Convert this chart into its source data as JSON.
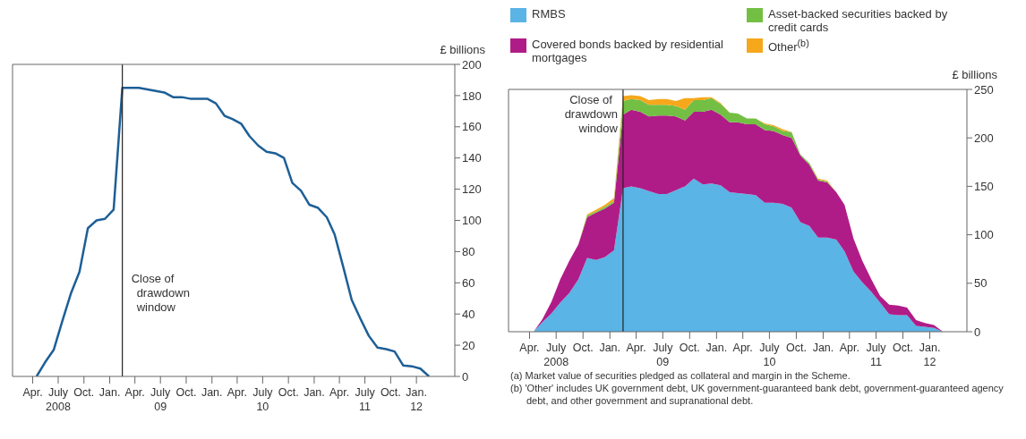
{
  "chart_data": [
    {
      "type": "line",
      "ylabel": "£ billions",
      "x": [
        "2008-04-15",
        "2008-05-15",
        "2008-06-15",
        "2008-07-15",
        "2008-08-15",
        "2008-09-15",
        "2008-10-15",
        "2008-11-15",
        "2008-12-15",
        "2009-01-15",
        "2009-02-15",
        "2009-04-15",
        "2009-06-15",
        "2009-07-15",
        "2009-08-15",
        "2009-09-15",
        "2009-10-15",
        "2009-12-15",
        "2010-01-15",
        "2010-02-15",
        "2010-03-15",
        "2010-04-15",
        "2010-05-15",
        "2010-06-15",
        "2010-07-15",
        "2010-08-15",
        "2010-09-15",
        "2010-10-15",
        "2010-11-15",
        "2010-12-15",
        "2011-01-15",
        "2011-02-15",
        "2011-03-15",
        "2011-04-15",
        "2011-05-15",
        "2011-06-15",
        "2011-07-15",
        "2011-08-15",
        "2011-09-15",
        "2011-10-15",
        "2011-11-15",
        "2011-12-15",
        "2012-01-15",
        "2012-02-15"
      ],
      "series": [
        {
          "color": "#1d5f96",
          "values": [
            0,
            9,
            17,
            35,
            53,
            67,
            95,
            100,
            101,
            107,
            185,
            185,
            183,
            182,
            179,
            179,
            178,
            178,
            175,
            167,
            165,
            162,
            154,
            148,
            144,
            143,
            140,
            124,
            119,
            110,
            108,
            102,
            91,
            70,
            49,
            37,
            26,
            18.5,
            17.5,
            16,
            7,
            6.5,
            5,
            0
          ]
        }
      ],
      "xlim": [
        "2008-01-20",
        "2012-05-17"
      ],
      "xticks": [
        {
          "value": "2008-04-01",
          "label": "Apr."
        },
        {
          "value": "2008-07-01",
          "label": "July\n2008"
        },
        {
          "value": "2008-10-01",
          "label": "Oct."
        },
        {
          "value": "2009-01-01",
          "label": "Jan."
        },
        {
          "value": "2009-04-01",
          "label": "Apr."
        },
        {
          "value": "2009-07-01",
          "label": "July\n09"
        },
        {
          "value": "2009-10-01",
          "label": "Oct."
        },
        {
          "value": "2010-01-01",
          "label": "Jan."
        },
        {
          "value": "2010-04-01",
          "label": "Apr."
        },
        {
          "value": "2010-07-01",
          "label": "July\n10"
        },
        {
          "value": "2010-10-01",
          "label": "Oct."
        },
        {
          "value": "2011-01-01",
          "label": "Jan."
        },
        {
          "value": "2011-04-01",
          "label": "Apr."
        },
        {
          "value": "2011-07-01",
          "label": "July\n11"
        },
        {
          "value": "2011-10-01",
          "label": "Oct."
        },
        {
          "value": "2012-01-01",
          "label": "Jan.\n12"
        }
      ],
      "ylim": [
        0,
        200
      ],
      "yticks": [
        0,
        20,
        40,
        60,
        80,
        100,
        120,
        140,
        160,
        180,
        200
      ],
      "ref_lines": [
        {
          "axis": "x",
          "value": "2009-02-15",
          "label": "Close of drawdown window"
        }
      ],
      "grid": false,
      "legend": false
    },
    {
      "type": "area",
      "stacked": true,
      "ylabel": "£ billions",
      "legend": "top left",
      "x": [
        "2008-04-15",
        "2008-05-15",
        "2008-06-15",
        "2008-07-15",
        "2008-08-15",
        "2008-09-15",
        "2008-10-15",
        "2008-11-15",
        "2008-12-15",
        "2009-01-15",
        "2009-02-15",
        "2009-03-15",
        "2009-04-15",
        "2009-05-15",
        "2009-06-15",
        "2009-07-15",
        "2009-08-15",
        "2009-09-15",
        "2009-10-15",
        "2009-11-15",
        "2009-12-15",
        "2010-01-15",
        "2010-02-15",
        "2010-03-15",
        "2010-04-15",
        "2010-05-15",
        "2010-06-15",
        "2010-07-15",
        "2010-08-15",
        "2010-09-15",
        "2010-10-15",
        "2010-11-15",
        "2010-12-15",
        "2011-01-15",
        "2011-02-15",
        "2011-03-15",
        "2011-04-15",
        "2011-05-15",
        "2011-06-15",
        "2011-07-15",
        "2011-08-15",
        "2011-09-15",
        "2011-10-15",
        "2011-11-15",
        "2011-12-15",
        "2012-01-15",
        "2012-02-15"
      ],
      "series": [
        {
          "name": "RMBS",
          "color": "#5ab4e5",
          "values": [
            0,
            10,
            19,
            30,
            40,
            54,
            76,
            74,
            77,
            84,
            148,
            150,
            148,
            145,
            142,
            142,
            146,
            150,
            158,
            152,
            153,
            151,
            144,
            143,
            142,
            141,
            133,
            133,
            132,
            128,
            113,
            109,
            97,
            97,
            95,
            83,
            62,
            51,
            41,
            30,
            18,
            17,
            17,
            6,
            5,
            4,
            0
          ]
        },
        {
          "name": "Covered bonds backed by residential mortgages",
          "color": "#b01c87",
          "values": [
            0,
            3,
            12,
            24,
            33,
            36,
            42,
            49,
            50,
            49,
            76,
            79,
            79,
            77,
            81,
            81,
            76,
            68,
            69,
            75,
            76,
            73,
            72,
            73,
            72,
            73,
            75,
            74,
            71,
            72,
            69,
            63,
            59,
            57,
            49,
            48,
            34,
            22,
            13,
            7,
            10,
            10,
            8,
            6,
            4,
            3,
            0
          ]
        },
        {
          "name": "Asset-backed securities backed by credit cards",
          "color": "#72bf44",
          "values": [
            0,
            0,
            0,
            0,
            0,
            0,
            2,
            1,
            2,
            2,
            14,
            11,
            12,
            12,
            11,
            11,
            11,
            11,
            12,
            12,
            12,
            11,
            10,
            9,
            6,
            6,
            6,
            5,
            4,
            6,
            1,
            2,
            1,
            1,
            0,
            0,
            0,
            0,
            0,
            0,
            0,
            0,
            0,
            0,
            0,
            0,
            0
          ]
        },
        {
          "name": "Other$^{(b)}$",
          "color": "#f5a81c",
          "values": [
            0,
            0,
            0,
            0,
            0,
            0,
            1,
            2,
            2,
            3,
            5,
            4,
            4,
            5,
            6,
            6,
            5,
            12,
            2,
            3,
            1,
            1,
            0,
            0,
            0,
            0,
            1,
            1,
            2,
            0,
            0,
            0,
            1,
            1,
            0,
            0,
            0,
            0,
            0,
            0,
            0,
            0,
            0,
            0,
            0,
            0,
            0
          ]
        }
      ],
      "xlim": [
        "2008-01-20",
        "2012-05-07"
      ],
      "xticks": [
        {
          "value": "2008-04-01",
          "label": "Apr."
        },
        {
          "value": "2008-07-01",
          "label": "July\n2008"
        },
        {
          "value": "2008-10-01",
          "label": "Oct."
        },
        {
          "value": "2009-01-01",
          "label": "Jan."
        },
        {
          "value": "2009-04-01",
          "label": "Apr."
        },
        {
          "value": "2009-07-01",
          "label": "July\n09"
        },
        {
          "value": "2009-10-01",
          "label": "Oct."
        },
        {
          "value": "2010-01-01",
          "label": "Jan."
        },
        {
          "value": "2010-04-01",
          "label": "Apr."
        },
        {
          "value": "2010-07-01",
          "label": "July\n10"
        },
        {
          "value": "2010-10-01",
          "label": "Oct."
        },
        {
          "value": "2011-01-01",
          "label": "Jan."
        },
        {
          "value": "2011-04-01",
          "label": "Apr."
        },
        {
          "value": "2011-07-01",
          "label": "July\n11"
        },
        {
          "value": "2011-10-01",
          "label": "Oct."
        },
        {
          "value": "2012-01-01",
          "label": "Jan.\n12"
        }
      ],
      "ylim": [
        0,
        250
      ],
      "yticks": [
        0,
        50,
        100,
        150,
        200,
        250
      ],
      "ref_lines": [
        {
          "axis": "x",
          "value": "2009-02-15",
          "label": "Close of drawdown window"
        }
      ],
      "grid": false,
      "annotations": [
        "(a) Market value of securities pledged as collateral and margin in the Scheme.",
        "(b) 'Other' includes UK government debt, UK government-guaranteed bank debt, government-guaranteed agency debt, and other government and supranational debt."
      ]
    }
  ]
}
